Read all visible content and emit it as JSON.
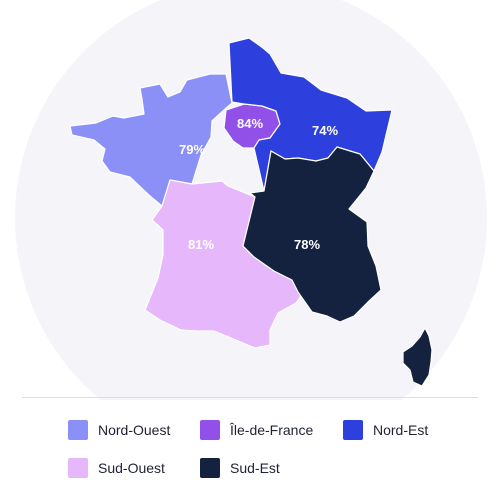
{
  "colors": {
    "nord_ouest": "#8b90f6",
    "ile_de_france": "#9151e8",
    "nord_est": "#2d3fdc",
    "sud_ouest": "#e6b7fb",
    "sud_est": "#14223f",
    "background_circle": "#f5f5f9"
  },
  "regions": {
    "nord_ouest": {
      "label": "Nord-Ouest",
      "value": "79%"
    },
    "ile_de_france": {
      "label": "Île-de-France",
      "value": "84%"
    },
    "nord_est": {
      "label": "Nord-Est",
      "value": "74%"
    },
    "sud_ouest": {
      "label": "Sud-Ouest",
      "value": "81%"
    },
    "sud_est": {
      "label": "Sud-Est",
      "value": "78%"
    }
  }
}
